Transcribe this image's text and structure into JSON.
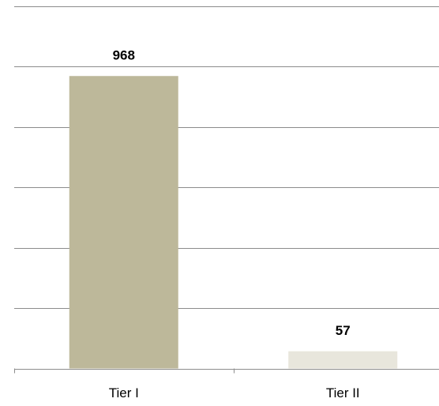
{
  "chart_data": {
    "type": "bar",
    "categories": [
      "Tier I",
      "Tier II"
    ],
    "values": [
      968,
      57
    ],
    "colors": [
      "#bdb89a",
      "#e8e6dc"
    ],
    "ylim": [
      0,
      1200
    ],
    "yticks": [
      0,
      200,
      400,
      600,
      800,
      1000,
      1200
    ],
    "grid": true
  }
}
